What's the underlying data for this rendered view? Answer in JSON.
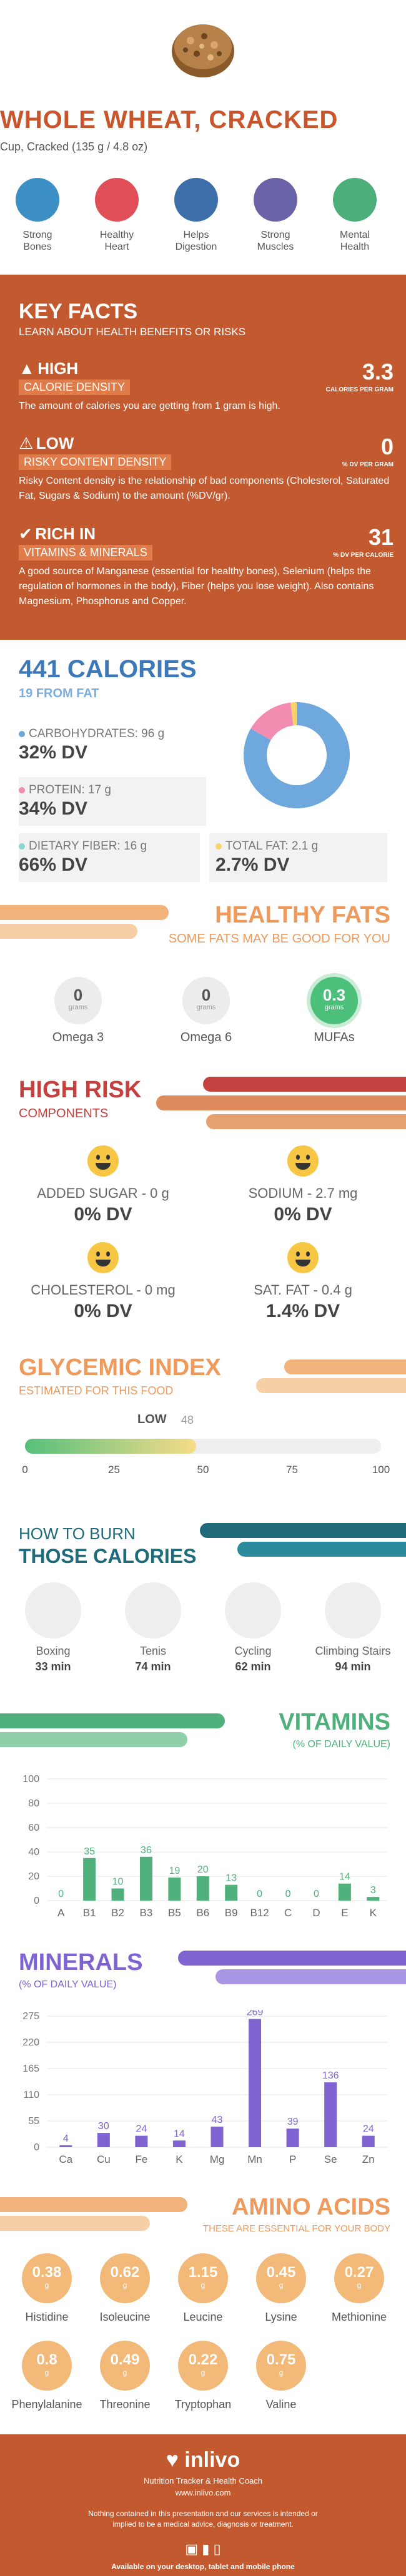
{
  "header": {
    "title": "WHOLE WHEAT, CRACKED",
    "serving": "Cup, Cracked (135 g / 4.8 oz)",
    "benefits": [
      {
        "line1": "Strong",
        "line2": "Bones",
        "icon": "bone-icon",
        "color": "#3b8fc5"
      },
      {
        "line1": "Healthy",
        "line2": "Heart",
        "icon": "heart-icon",
        "color": "#e04e57"
      },
      {
        "line1": "Helps",
        "line2": "Digestion",
        "icon": "stomach-icon",
        "color": "#3c6fa9"
      },
      {
        "line1": "Strong",
        "line2": "Muscles",
        "icon": "muscle-icon",
        "color": "#6a63a8"
      },
      {
        "line1": "Mental",
        "line2": "Health",
        "icon": "brain-icon",
        "color": "#4caf7a"
      }
    ]
  },
  "key_facts": {
    "title": "KEY FACTS",
    "subtitle": "LEARN ABOUT HEALTH BENEFITS OR RISKS",
    "facts": [
      {
        "level": "HIGH",
        "category": "CALORIE DENSITY",
        "value": "3.3",
        "unit": "CALORIES PER GRAM",
        "desc": "The amount of calories you are getting from 1 gram is high."
      },
      {
        "level": "LOW",
        "category": "RISKY CONTENT DENSITY",
        "value": "0",
        "unit": "% DV PER GRAM",
        "desc": "Risky Content density is the relationship of bad components (Cholesterol, Saturated Fat, Sugars & Sodium) to the amount (%DV/gr)."
      },
      {
        "level": "RICH IN",
        "category": "VITAMINS & MINERALS",
        "value": "31",
        "unit": "% DV PER CALORIE",
        "desc": "A good source of Manganese (essential for healthy bones), Selenium (helps the regulation of hormones in the body), Fiber (helps you lose weight). Also contains Magnesium, Phosphorus and Copper."
      }
    ]
  },
  "calories": {
    "title": "441 CALORIES",
    "subtitle": "19 FROM FAT",
    "macros": [
      {
        "name": "CARBOHYDRATES: 96 g",
        "dv": "32% DV",
        "color": "#6fa8dc"
      },
      {
        "name": "PROTEIN: 17 g",
        "dv": "34% DV",
        "color": "#f28cb1"
      },
      {
        "name": "DIETARY FIBER: 16 g",
        "dv": "66% DV",
        "color": "#8fd4d0"
      },
      {
        "name": "TOTAL FAT: 2.1 g",
        "dv": "2.7% DV",
        "color": "#f6d36b"
      }
    ],
    "donut": [
      {
        "label": "Carbohydrates",
        "value": 96,
        "color": "#6fa8dc"
      },
      {
        "label": "Protein",
        "value": 17,
        "color": "#f28cb1"
      },
      {
        "label": "Fat",
        "value": 2.1,
        "color": "#f6d36b"
      }
    ]
  },
  "healthy_fats": {
    "title": "HEALTHY FATS",
    "subtitle": "SOME FATS MAY BE GOOD FOR YOU",
    "items": [
      {
        "value": "0",
        "unit": "grams",
        "label": "Omega 3",
        "highlight": false
      },
      {
        "value": "0",
        "unit": "grams",
        "label": "Omega 6",
        "highlight": false
      },
      {
        "value": "0.3",
        "unit": "grams",
        "label": "MUFAs",
        "highlight": true
      }
    ]
  },
  "high_risk": {
    "title": "HIGH RISK",
    "subtitle": "COMPONENTS",
    "items": [
      {
        "name": "ADDED SUGAR - 0 g",
        "dv": "0% DV"
      },
      {
        "name": "SODIUM - 2.7 mg",
        "dv": "0% DV"
      },
      {
        "name": "CHOLESTEROL - 0 mg",
        "dv": "0% DV"
      },
      {
        "name": "SAT. FAT - 0.4 g",
        "dv": "1.4% DV"
      }
    ]
  },
  "glycemic": {
    "title": "GLYCEMIC INDEX",
    "subtitle": "ESTIMATED FOR THIS FOOD",
    "level": "LOW",
    "value": 48,
    "value_label": "48",
    "ticks": [
      "0",
      "25",
      "50",
      "75",
      "100"
    ]
  },
  "burn": {
    "title1": "HOW TO BURN",
    "title2": "THOSE CALORIES",
    "activities": [
      {
        "name": "Boxing",
        "time": "33 min",
        "icon": "boxing-icon"
      },
      {
        "name": "Tenis",
        "time": "74 min",
        "icon": "tennis-icon"
      },
      {
        "name": "Cycling",
        "time": "62 min",
        "icon": "cycling-icon"
      },
      {
        "name": "Climbing Stairs",
        "time": "94 min",
        "icon": "stairs-icon"
      }
    ]
  },
  "chart_data": [
    {
      "type": "bar",
      "title": "VITAMINS",
      "subtitle": "(% OF DAILY VALUE)",
      "categories": [
        "A",
        "B1",
        "B2",
        "B3",
        "B5",
        "B6",
        "B9",
        "B12",
        "C",
        "D",
        "E",
        "K"
      ],
      "values": [
        0,
        35,
        10,
        36,
        19,
        20,
        13,
        0,
        0,
        0,
        14,
        3
      ],
      "labels": [
        "0",
        "35",
        "10",
        "36",
        "19",
        "20",
        "13",
        "0",
        "0",
        "0",
        "14",
        "3"
      ],
      "yticks": [
        "0",
        "20",
        "40",
        "60",
        "80",
        "100"
      ],
      "ylim": [
        0,
        100
      ],
      "color": "#4fb07c"
    },
    {
      "type": "bar",
      "title": "MINERALS",
      "subtitle": "(% OF DAILY VALUE)",
      "categories": [
        "Ca",
        "Cu",
        "Fe",
        "K",
        "Mg",
        "Mn",
        "P",
        "Se",
        "Zn"
      ],
      "values": [
        4,
        30,
        24,
        14,
        43,
        269,
        39,
        136,
        24
      ],
      "labels": [
        "4",
        "30",
        "24",
        "14",
        "43",
        "269",
        "39",
        "136",
        "24"
      ],
      "yticks": [
        "0",
        "55",
        "110",
        "165",
        "220",
        "275"
      ],
      "ylim": [
        0,
        275
      ],
      "color": "#7f63d1"
    }
  ],
  "amino": {
    "title": "AMINO ACIDS",
    "subtitle": "THESE ARE ESSENTIAL FOR YOUR BODY",
    "items": [
      {
        "value": "0.38",
        "unit": "g",
        "label": "Histidine"
      },
      {
        "value": "0.62",
        "unit": "g",
        "label": "Isoleucine"
      },
      {
        "value": "1.15",
        "unit": "g",
        "label": "Leucine"
      },
      {
        "value": "0.45",
        "unit": "g",
        "label": "Lysine"
      },
      {
        "value": "0.27",
        "unit": "g",
        "label": "Methionine"
      },
      {
        "value": "0.8",
        "unit": "g",
        "label": "Phenylalanine"
      },
      {
        "value": "0.49",
        "unit": "g",
        "label": "Threonine"
      },
      {
        "value": "0.22",
        "unit": "g",
        "label": "Tryptophan"
      },
      {
        "value": "0.75",
        "unit": "g",
        "label": "Valine"
      }
    ]
  },
  "footer": {
    "brand": "inlivo",
    "tagline": "Nutrition Tracker & Health Coach",
    "url": "www.inlivo.com",
    "disclaimer": "Nothing contained in this presentation and our services is intended or implied to be a medical advice, diagnosis or treatment.",
    "available": "Available on your desktop, tablet and mobile phone"
  }
}
